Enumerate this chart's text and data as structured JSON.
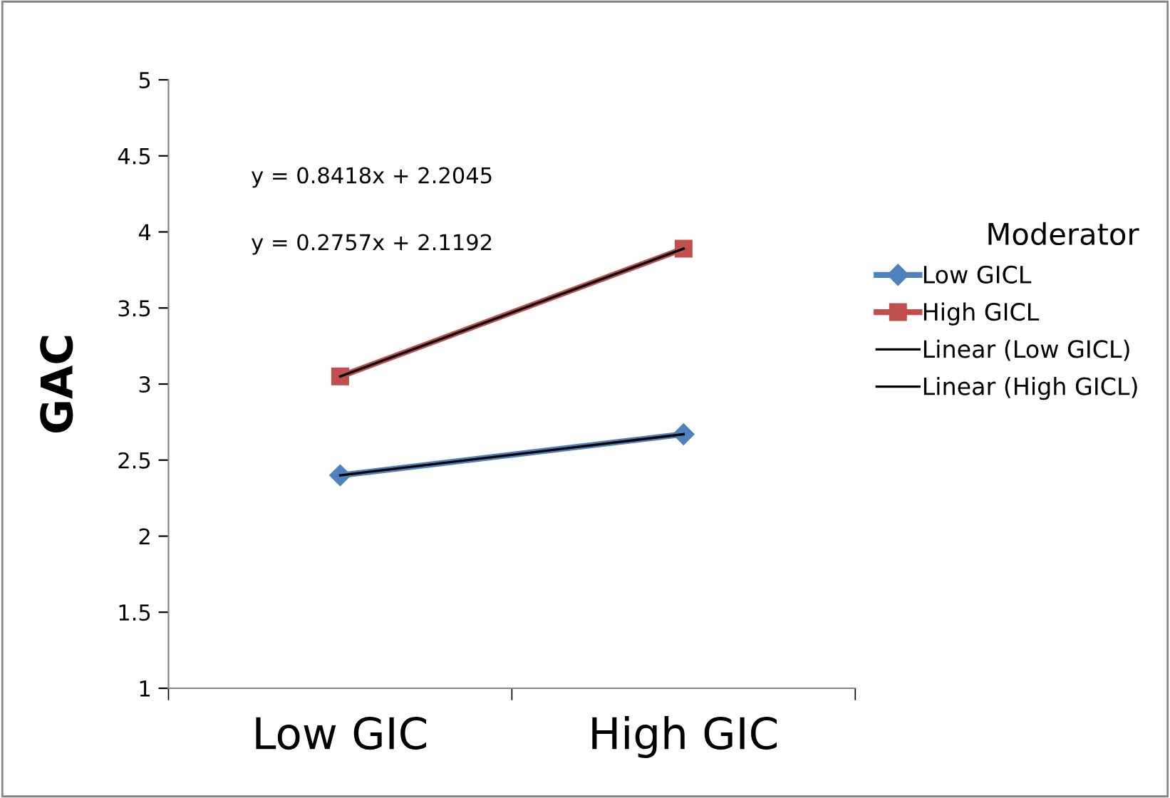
{
  "chart_data": {
    "type": "line",
    "ylabel": "GAC",
    "legend_title": "Moderator",
    "legend": "right",
    "categories": [
      "Low GIC",
      "High GIC"
    ],
    "series": [
      {
        "name": "Low GICL",
        "color": "#4f81bd",
        "values": [
          2.4,
          2.67
        ],
        "marker": "diamond"
      },
      {
        "name": "High GICL",
        "color": "#c0504d",
        "values": [
          3.05,
          3.89
        ],
        "marker": "square"
      },
      {
        "name": "Linear (Low GICL)",
        "color": "#000000",
        "values": [
          2.4,
          2.67
        ],
        "marker": "none"
      },
      {
        "name": "Linear (High GICL)",
        "color": "#000000",
        "values": [
          3.05,
          3.89
        ],
        "marker": "none"
      }
    ],
    "ylim": [
      1,
      5
    ],
    "yticks": [
      1,
      1.5,
      2,
      2.5,
      3,
      3.5,
      4,
      4.5,
      5
    ],
    "grid": false,
    "line_style": "solid",
    "annotations": [
      "y = 0.8418x + 2.2045",
      "y = 0.2757x + 2.1192"
    ]
  }
}
